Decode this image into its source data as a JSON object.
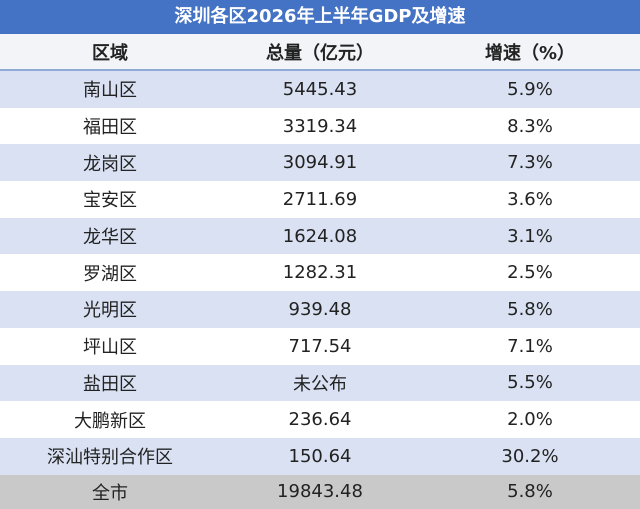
{
  "title": "深圳各区2026年上半年GDP及增速",
  "table": {
    "header": [
      "区域",
      "总量（亿元）",
      "增速（%）"
    ],
    "rows": [
      [
        "南山区",
        "5445.43",
        "5.9%"
      ],
      [
        "福田区",
        "3319.34",
        "8.3%"
      ],
      [
        "龙岗区",
        "3094.91",
        "7.3%"
      ],
      [
        "宝安区",
        "2711.69",
        "3.6%"
      ],
      [
        "龙华区",
        "1624.08",
        "3.1%"
      ],
      [
        "罗湖区",
        "1282.31",
        "2.5%"
      ],
      [
        "光明区",
        "939.48",
        "5.8%"
      ],
      [
        "坪山区",
        "717.54",
        "7.1%"
      ],
      [
        "盐田区",
        "未公布",
        "5.5%"
      ],
      [
        "大鹏新区",
        "236.64",
        "2.0%"
      ],
      [
        "深汕特别合作区",
        "150.64",
        "30.2%"
      ]
    ],
    "total": [
      "全市",
      "19843.48",
      "5.8%"
    ]
  }
}
